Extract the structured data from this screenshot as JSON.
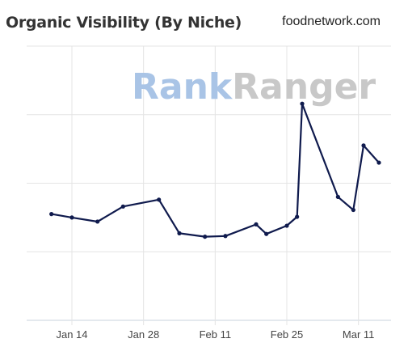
{
  "header": {
    "title": "Organic Visibility (By Niche)",
    "site": "foodnetwork.com"
  },
  "watermark": {
    "part1": "Rank",
    "part2": "Ranger"
  },
  "chart_data": {
    "type": "line",
    "title": "Organic Visibility (By Niche)",
    "xlabel": "",
    "ylabel": "",
    "grid": true,
    "line_color": "#0f1a4d",
    "x_tick_labels": [
      "Jan 14",
      "Jan 28",
      "Feb 11",
      "Feb 25",
      "Mar 11"
    ],
    "x_tick_days": [
      14,
      28,
      42,
      56,
      70
    ],
    "x_domain_days": [
      8,
      74
    ],
    "y_domain": [
      0,
      4
    ],
    "series": [
      {
        "points": [
          {
            "day": 10,
            "value": 1.55
          },
          {
            "day": 14,
            "value": 1.5
          },
          {
            "day": 19,
            "value": 1.44
          },
          {
            "day": 24,
            "value": 1.66
          },
          {
            "day": 31,
            "value": 1.76
          },
          {
            "day": 35,
            "value": 1.27
          },
          {
            "day": 40,
            "value": 1.22
          },
          {
            "day": 44,
            "value": 1.23
          },
          {
            "day": 50,
            "value": 1.4
          },
          {
            "day": 52,
            "value": 1.26
          },
          {
            "day": 56,
            "value": 1.38
          },
          {
            "day": 58,
            "value": 1.51
          },
          {
            "day": 59,
            "value": 3.16
          },
          {
            "day": 66,
            "value": 1.8
          },
          {
            "day": 69,
            "value": 1.61
          },
          {
            "day": 71,
            "value": 2.55
          },
          {
            "day": 74,
            "value": 2.3
          }
        ]
      }
    ]
  }
}
